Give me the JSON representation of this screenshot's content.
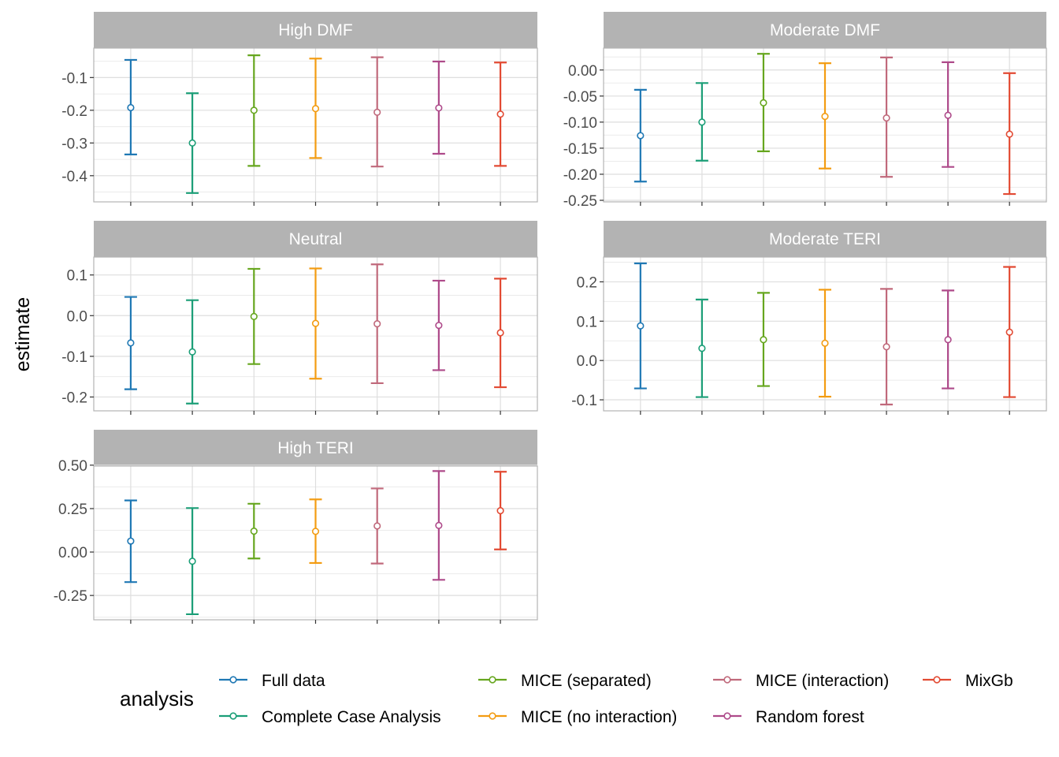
{
  "chart_data": {
    "type": "errorbar",
    "ylabel": "estimate",
    "legend": {
      "title": "analysis",
      "position": "bottom"
    },
    "grid": true,
    "series": [
      {
        "name": "Full data",
        "color": "#1F78B4"
      },
      {
        "name": "Complete Case Analysis",
        "color": "#1B9E77"
      },
      {
        "name": "MICE (separated)",
        "color": "#66A61E"
      },
      {
        "name": "MICE (no interaction)",
        "color": "#F39C12"
      },
      {
        "name": "MICE (interaction)",
        "color": "#C0697B"
      },
      {
        "name": "Random forest",
        "color": "#AE4A8A"
      },
      {
        "name": "MixGb",
        "color": "#E24A33"
      }
    ],
    "panels": [
      {
        "title": "High DMF",
        "ylim": [
          -0.48,
          -0.01
        ],
        "ticks": [
          "-0.1",
          "-0.2",
          "-0.3",
          "-0.4"
        ],
        "tick_values": [
          -0.1,
          -0.2,
          -0.3,
          -0.4
        ],
        "estimate": [
          -0.192,
          -0.3,
          -0.2,
          -0.195,
          -0.206,
          -0.193,
          -0.212
        ],
        "lower": [
          -0.335,
          -0.453,
          -0.37,
          -0.346,
          -0.372,
          -0.333,
          -0.37
        ],
        "upper": [
          -0.046,
          -0.148,
          -0.032,
          -0.042,
          -0.038,
          -0.051,
          -0.054
        ]
      },
      {
        "title": "Moderate DMF",
        "ylim": [
          -0.253,
          0.042
        ],
        "ticks": [
          "0.00",
          "-0.05",
          "-0.10",
          "-0.15",
          "-0.20",
          "-0.25"
        ],
        "tick_values": [
          0.0,
          -0.05,
          -0.1,
          -0.15,
          -0.2,
          -0.25
        ],
        "estimate": [
          -0.126,
          -0.1,
          -0.063,
          -0.089,
          -0.092,
          -0.087,
          -0.123
        ],
        "lower": [
          -0.214,
          -0.174,
          -0.156,
          -0.189,
          -0.205,
          -0.186,
          -0.238
        ],
        "upper": [
          -0.038,
          -0.025,
          0.031,
          0.013,
          0.024,
          0.015,
          -0.006
        ]
      },
      {
        "title": "Neutral",
        "ylim": [
          -0.234,
          0.144
        ],
        "ticks": [
          "0.1",
          "0.0",
          "-0.1",
          "-0.2"
        ],
        "tick_values": [
          0.1,
          0.0,
          -0.1,
          -0.2
        ],
        "estimate": [
          -0.067,
          -0.089,
          -0.002,
          -0.019,
          -0.02,
          -0.024,
          -0.042
        ],
        "lower": [
          -0.181,
          -0.216,
          -0.119,
          -0.155,
          -0.166,
          -0.134,
          -0.176
        ],
        "upper": [
          0.046,
          0.038,
          0.115,
          0.116,
          0.126,
          0.086,
          0.091
        ]
      },
      {
        "title": "Moderate TERI",
        "ylim": [
          -0.128,
          0.263
        ],
        "ticks": [
          "0.2",
          "0.1",
          "0.0",
          "-0.1"
        ],
        "tick_values": [
          0.2,
          0.1,
          0.0,
          -0.1
        ],
        "estimate": [
          0.088,
          0.031,
          0.053,
          0.044,
          0.035,
          0.053,
          0.072
        ],
        "lower": [
          -0.071,
          -0.093,
          -0.065,
          -0.092,
          -0.112,
          -0.071,
          -0.093
        ],
        "upper": [
          0.247,
          0.155,
          0.172,
          0.18,
          0.182,
          0.178,
          0.238
        ]
      },
      {
        "title": "High TERI",
        "ylim": [
          -0.39,
          0.495
        ],
        "ticks": [
          "0.50",
          "0.25",
          "0.00",
          "-0.25"
        ],
        "tick_values": [
          0.5,
          0.25,
          0.0,
          -0.25
        ],
        "estimate": [
          0.063,
          -0.053,
          0.12,
          0.119,
          0.15,
          0.153,
          0.238
        ],
        "lower": [
          -0.173,
          -0.358,
          -0.037,
          -0.063,
          -0.066,
          -0.16,
          0.015
        ],
        "upper": [
          0.297,
          0.253,
          0.278,
          0.303,
          0.366,
          0.466,
          0.462
        ]
      }
    ]
  }
}
